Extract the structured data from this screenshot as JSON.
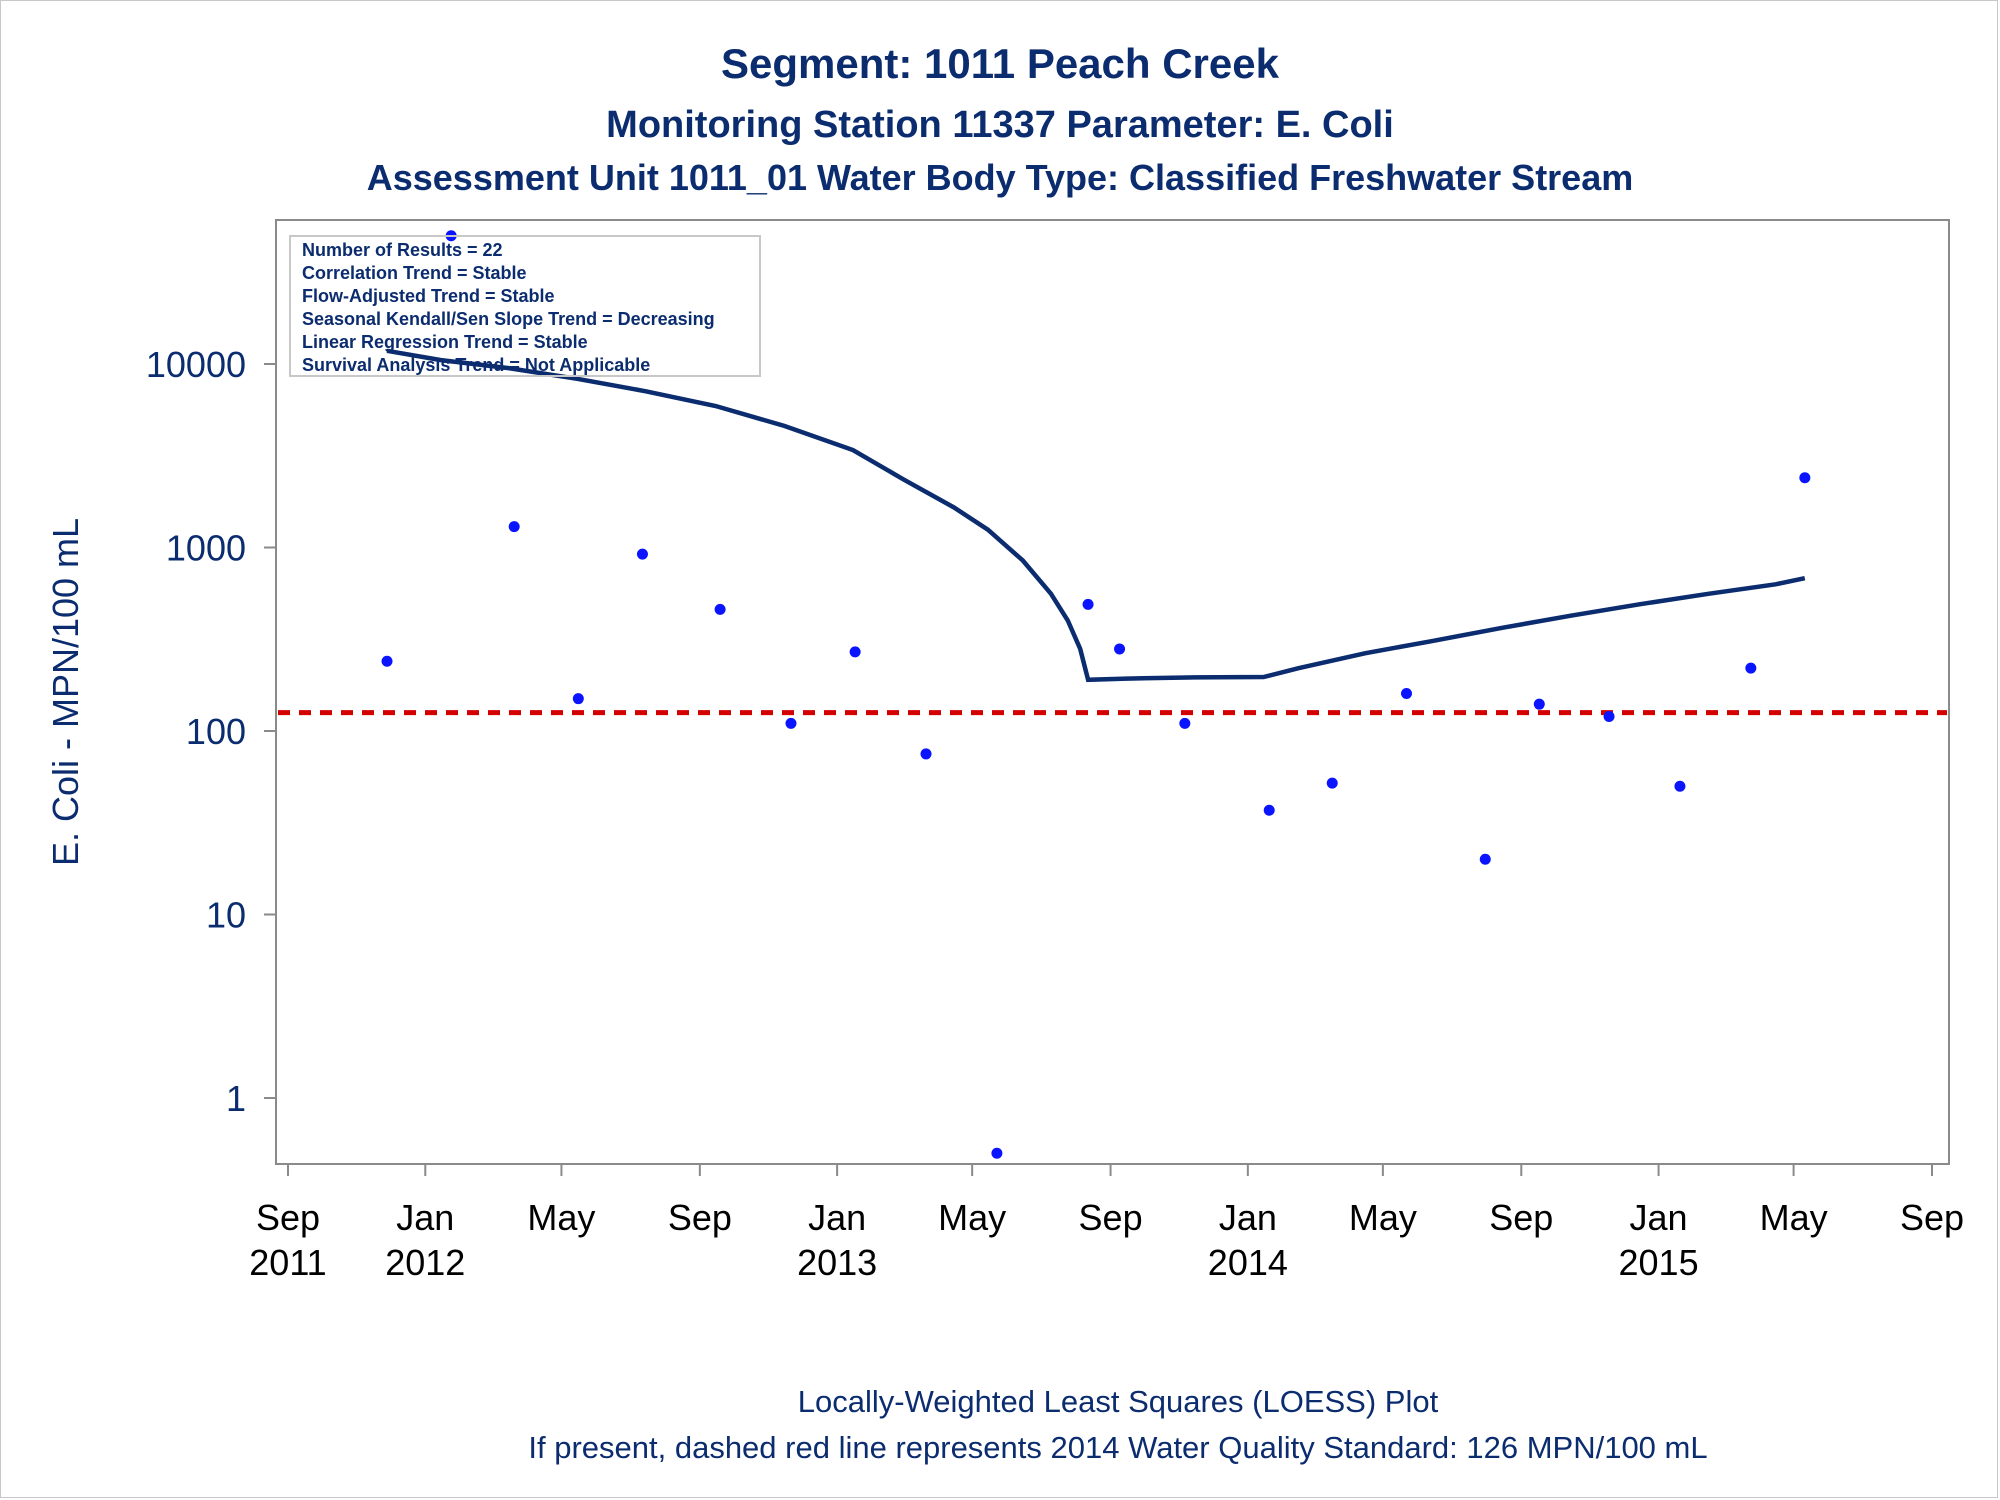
{
  "titles": {
    "line1": "Segment: 1011  Peach Creek",
    "line2": "Monitoring Station 11337 Parameter: E. Coli",
    "line3": "Assessment Unit 1011_01   Water Body Type: Classified Freshwater Stream"
  },
  "stats_box": [
    "Number of Results = 22",
    "Correlation Trend = Stable",
    "Flow-Adjusted Trend = Stable",
    "Seasonal Kendall/Sen Slope Trend = Decreasing",
    "Linear Regression Trend = Stable",
    "Survival Analysis Trend = Not Applicable"
  ],
  "footer": {
    "line1": "Locally-Weighted Least Squares (LOESS) Plot",
    "line2": "If present, dashed red line represents 2014 Water Quality Standard: 126 MPN/100 mL"
  },
  "colors": {
    "title": "#0b2c6e",
    "points": "#0a14ff",
    "loess": "#0b2c6e",
    "standard": "#d40000",
    "axis": "#8a8a8a"
  },
  "chart_data": {
    "type": "scatter",
    "ylabel": "E. Coli - MPN/100 mL",
    "xlabel": "",
    "y_scale": "log",
    "ylim": [
      0.45,
      60000
    ],
    "xlim": [
      "2011-09-01",
      "2015-09-01"
    ],
    "y_ticks": [
      1,
      10,
      100,
      1000,
      10000
    ],
    "x_ticks": [
      {
        "date": "2011-09-01",
        "label": "Sep",
        "year": "2011"
      },
      {
        "date": "2012-01-01",
        "label": "Jan",
        "year": "2012"
      },
      {
        "date": "2012-05-01",
        "label": "May",
        "year": ""
      },
      {
        "date": "2012-09-01",
        "label": "Sep",
        "year": ""
      },
      {
        "date": "2013-01-01",
        "label": "Jan",
        "year": "2013"
      },
      {
        "date": "2013-05-01",
        "label": "May",
        "year": ""
      },
      {
        "date": "2013-09-01",
        "label": "Sep",
        "year": ""
      },
      {
        "date": "2014-01-01",
        "label": "Jan",
        "year": "2014"
      },
      {
        "date": "2014-05-01",
        "label": "May",
        "year": ""
      },
      {
        "date": "2014-09-01",
        "label": "Sep",
        "year": ""
      },
      {
        "date": "2015-01-01",
        "label": "Jan",
        "year": "2015"
      },
      {
        "date": "2015-05-01",
        "label": "May",
        "year": ""
      },
      {
        "date": "2015-09-01",
        "label": "Sep",
        "year": ""
      }
    ],
    "points": [
      {
        "x": "2011-11-28",
        "y": 240
      },
      {
        "x": "2012-01-24",
        "y": 50000
      },
      {
        "x": "2012-03-20",
        "y": 1300
      },
      {
        "x": "2012-05-16",
        "y": 150
      },
      {
        "x": "2012-07-12",
        "y": 920
      },
      {
        "x": "2012-09-19",
        "y": 460
      },
      {
        "x": "2012-11-21",
        "y": 110
      },
      {
        "x": "2013-01-17",
        "y": 270
      },
      {
        "x": "2013-03-21",
        "y": 75
      },
      {
        "x": "2013-05-23",
        "y": 0.5
      },
      {
        "x": "2013-08-12",
        "y": 490
      },
      {
        "x": "2013-09-09",
        "y": 280
      },
      {
        "x": "2013-11-06",
        "y": 110
      },
      {
        "x": "2014-01-20",
        "y": 37
      },
      {
        "x": "2014-03-17",
        "y": 52
      },
      {
        "x": "2014-05-22",
        "y": 160
      },
      {
        "x": "2014-07-31",
        "y": 20
      },
      {
        "x": "2014-09-17",
        "y": 140
      },
      {
        "x": "2014-11-18",
        "y": 120
      },
      {
        "x": "2015-01-20",
        "y": 50
      },
      {
        "x": "2015-03-24",
        "y": 220
      },
      {
        "x": "2015-05-11",
        "y": 2400
      }
    ],
    "loess_line": [
      {
        "x": "2011-11-28",
        "y": 11800
      },
      {
        "x": "2012-01-15",
        "y": 10500
      },
      {
        "x": "2012-03-15",
        "y": 9500
      },
      {
        "x": "2012-05-15",
        "y": 8300
      },
      {
        "x": "2012-07-15",
        "y": 7100
      },
      {
        "x": "2012-09-15",
        "y": 5900
      },
      {
        "x": "2012-11-15",
        "y": 4600
      },
      {
        "x": "2013-01-15",
        "y": 3400
      },
      {
        "x": "2013-03-01",
        "y": 2350
      },
      {
        "x": "2013-04-15",
        "y": 1650
      },
      {
        "x": "2013-05-15",
        "y": 1250
      },
      {
        "x": "2013-06-15",
        "y": 850
      },
      {
        "x": "2013-07-10",
        "y": 560
      },
      {
        "x": "2013-07-25",
        "y": 400
      },
      {
        "x": "2013-08-05",
        "y": 280
      },
      {
        "x": "2013-08-12",
        "y": 190
      },
      {
        "x": "2013-09-15",
        "y": 193
      },
      {
        "x": "2013-11-15",
        "y": 196
      },
      {
        "x": "2014-01-15",
        "y": 197
      },
      {
        "x": "2014-02-15",
        "y": 220
      },
      {
        "x": "2014-04-15",
        "y": 265
      },
      {
        "x": "2014-06-15",
        "y": 310
      },
      {
        "x": "2014-08-15",
        "y": 365
      },
      {
        "x": "2014-10-15",
        "y": 425
      },
      {
        "x": "2014-12-15",
        "y": 490
      },
      {
        "x": "2015-02-15",
        "y": 560
      },
      {
        "x": "2015-04-15",
        "y": 630
      },
      {
        "x": "2015-05-11",
        "y": 680
      }
    ],
    "reference_line": {
      "y": 126
    }
  }
}
